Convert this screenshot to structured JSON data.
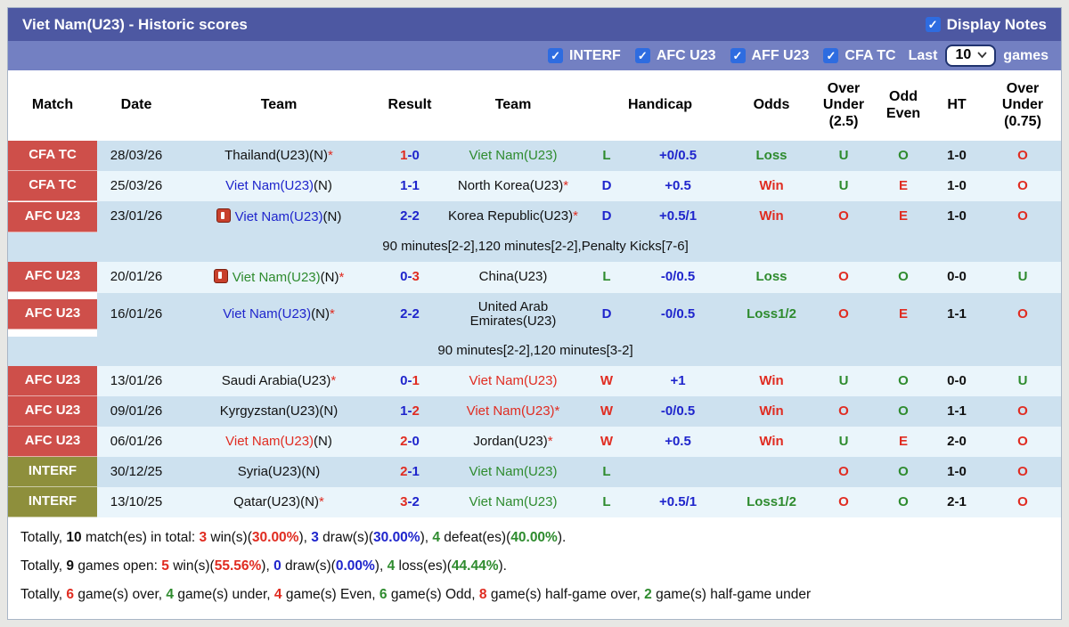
{
  "header": {
    "title": "Viet Nam(U23) - Historic scores",
    "display_notes_label": "Display Notes",
    "display_notes_checked": true
  },
  "filters": {
    "checkboxes": [
      {
        "label": "INTERF",
        "checked": true
      },
      {
        "label": "AFC U23",
        "checked": true
      },
      {
        "label": "AFF U23",
        "checked": true
      },
      {
        "label": "CFA TC",
        "checked": true
      }
    ],
    "last_label": "Last",
    "select_value": "10",
    "games_label": "games"
  },
  "colors": {
    "header_dark": "#4d58a2",
    "header_light": "#7380c2",
    "checkbox_blue": "#2e6ce0",
    "label_red": "#ce4f4a",
    "label_olive": "#8e8f3c",
    "stripe_dark": "#cde1ef",
    "stripe_light": "#eaf5fb",
    "win_red": "#e02c21",
    "draw_blue": "#1f25cc",
    "loss_green": "#2e8b2e"
  },
  "table": {
    "headers": {
      "match": "Match",
      "date": "Date",
      "team_home": "Team",
      "result": "Result",
      "team_away": "Team",
      "handicap": "Handicap",
      "odds": "Odds",
      "over_under_25": "Over\nUnder\n(2.5)",
      "odd_even": "Odd\nEven",
      "ht": "HT",
      "over_under_075": "Over\nUnder\n(0.75)"
    },
    "rows": [
      {
        "type": "match",
        "shade": "a",
        "league": "CFA TC",
        "league_color": "red",
        "date": "28/03/26",
        "home_icon": false,
        "away_icon": false,
        "home": [
          [
            "Thailand(U23)(N)",
            "k"
          ],
          [
            "*",
            "r"
          ]
        ],
        "result": [
          [
            "1",
            "r"
          ],
          [
            "-0",
            "bl"
          ]
        ],
        "away": [
          [
            "Viet Nam(U23)",
            "g"
          ]
        ],
        "wdl": [
          "L",
          "g"
        ],
        "handicap": [
          "+0/0.5",
          "bl"
        ],
        "odds": [
          "Loss",
          "g"
        ],
        "ou25": [
          "U",
          "g"
        ],
        "odd_even": [
          "O",
          "g"
        ],
        "ht": "1-0",
        "ou075": [
          "O",
          "r"
        ]
      },
      {
        "type": "match",
        "shade": "b",
        "league": "CFA TC",
        "league_color": "red",
        "date": "25/03/26",
        "home_icon": false,
        "away_icon": false,
        "home": [
          [
            "Viet Nam(U23)",
            "bl"
          ],
          [
            "(N)",
            "k"
          ]
        ],
        "result": [
          [
            "1-1",
            "bl"
          ]
        ],
        "away": [
          [
            "North Korea(U23)",
            "k"
          ],
          [
            "*",
            "r"
          ]
        ],
        "wdl": [
          "D",
          "bl"
        ],
        "handicap": [
          "+0.5",
          "bl"
        ],
        "odds": [
          "Win",
          "r"
        ],
        "ou25": [
          "U",
          "g"
        ],
        "odd_even": [
          "E",
          "r"
        ],
        "ht": "1-0",
        "ou075": [
          "O",
          "r"
        ]
      },
      {
        "type": "match",
        "shade": "a",
        "league": "AFC U23",
        "league_color": "red",
        "date": "23/01/26",
        "home_icon": true,
        "away_icon": false,
        "home": [
          [
            "Viet Nam(U23)",
            "bl"
          ],
          [
            "(N)",
            "k"
          ]
        ],
        "result": [
          [
            "2-2",
            "bl"
          ]
        ],
        "away": [
          [
            "Korea Republic(U23)",
            "k"
          ],
          [
            "*",
            "r"
          ]
        ],
        "wdl": [
          "D",
          "bl"
        ],
        "handicap": [
          "+0.5/1",
          "bl"
        ],
        "odds": [
          "Win",
          "r"
        ],
        "ou25": [
          "O",
          "r"
        ],
        "odd_even": [
          "E",
          "r"
        ],
        "ht": "1-0",
        "ou075": [
          "O",
          "r"
        ]
      },
      {
        "type": "note",
        "shade": "a",
        "text": "90 minutes[2-2],120 minutes[2-2],Penalty Kicks[7-6]"
      },
      {
        "type": "match",
        "shade": "b",
        "league": "AFC U23",
        "league_color": "red",
        "date": "20/01/26",
        "home_icon": true,
        "away_icon": false,
        "home": [
          [
            "Viet Nam(U23)",
            "g"
          ],
          [
            "(N)",
            "k"
          ],
          [
            "*",
            "r"
          ]
        ],
        "result": [
          [
            "0-",
            "bl"
          ],
          [
            "3",
            "r"
          ]
        ],
        "away": [
          [
            "China(U23)",
            "k"
          ]
        ],
        "wdl": [
          "L",
          "g"
        ],
        "handicap": [
          "-0/0.5",
          "bl"
        ],
        "odds": [
          "Loss",
          "g"
        ],
        "ou25": [
          "O",
          "r"
        ],
        "odd_even": [
          "O",
          "g"
        ],
        "ht": "0-0",
        "ou075": [
          "U",
          "g"
        ]
      },
      {
        "type": "match",
        "shade": "a",
        "league": "AFC U23",
        "league_color": "red",
        "date": "16/01/26",
        "home_icon": false,
        "away_icon": false,
        "home": [
          [
            "Viet Nam(U23)",
            "bl"
          ],
          [
            "(N)",
            "k"
          ],
          [
            "*",
            "r"
          ]
        ],
        "result": [
          [
            "2-2",
            "bl"
          ]
        ],
        "away": [
          [
            "United Arab Emirates(U23)",
            "k"
          ]
        ],
        "wdl": [
          "D",
          "bl"
        ],
        "handicap": [
          "-0/0.5",
          "bl"
        ],
        "odds": [
          "Loss1/2",
          "g"
        ],
        "ou25": [
          "O",
          "r"
        ],
        "odd_even": [
          "E",
          "r"
        ],
        "ht": "1-1",
        "ou075": [
          "O",
          "r"
        ]
      },
      {
        "type": "note",
        "shade": "a",
        "text": "90 minutes[2-2],120 minutes[3-2]"
      },
      {
        "type": "match",
        "shade": "b",
        "league": "AFC U23",
        "league_color": "red",
        "date": "13/01/26",
        "home_icon": false,
        "away_icon": false,
        "home": [
          [
            "Saudi Arabia(U23)",
            "k"
          ],
          [
            "*",
            "r"
          ]
        ],
        "result": [
          [
            "0-",
            "bl"
          ],
          [
            "1",
            "r"
          ]
        ],
        "away": [
          [
            "Viet Nam(U23)",
            "r"
          ]
        ],
        "wdl": [
          "W",
          "r"
        ],
        "handicap": [
          "+1",
          "bl"
        ],
        "odds": [
          "Win",
          "r"
        ],
        "ou25": [
          "U",
          "g"
        ],
        "odd_even": [
          "O",
          "g"
        ],
        "ht": "0-0",
        "ou075": [
          "U",
          "g"
        ]
      },
      {
        "type": "match",
        "shade": "a",
        "league": "AFC U23",
        "league_color": "red",
        "date": "09/01/26",
        "home_icon": false,
        "away_icon": false,
        "home": [
          [
            "Kyrgyzstan(U23)(N)",
            "k"
          ]
        ],
        "result": [
          [
            "1-",
            "bl"
          ],
          [
            "2",
            "r"
          ]
        ],
        "away": [
          [
            "Viet Nam(U23)",
            "r"
          ],
          [
            "*",
            "r"
          ]
        ],
        "wdl": [
          "W",
          "r"
        ],
        "handicap": [
          "-0/0.5",
          "bl"
        ],
        "odds": [
          "Win",
          "r"
        ],
        "ou25": [
          "O",
          "r"
        ],
        "odd_even": [
          "O",
          "g"
        ],
        "ht": "1-1",
        "ou075": [
          "O",
          "r"
        ]
      },
      {
        "type": "match",
        "shade": "b",
        "league": "AFC U23",
        "league_color": "red",
        "date": "06/01/26",
        "home_icon": false,
        "away_icon": false,
        "home": [
          [
            "Viet Nam(U23)",
            "r"
          ],
          [
            "(N)",
            "k"
          ]
        ],
        "result": [
          [
            "2",
            "r"
          ],
          [
            "-0",
            "bl"
          ]
        ],
        "away": [
          [
            "Jordan(U23)",
            "k"
          ],
          [
            "*",
            "r"
          ]
        ],
        "wdl": [
          "W",
          "r"
        ],
        "handicap": [
          "+0.5",
          "bl"
        ],
        "odds": [
          "Win",
          "r"
        ],
        "ou25": [
          "U",
          "g"
        ],
        "odd_even": [
          "E",
          "r"
        ],
        "ht": "2-0",
        "ou075": [
          "O",
          "r"
        ]
      },
      {
        "type": "match",
        "shade": "a",
        "league": "INTERF",
        "league_color": "olive",
        "date": "30/12/25",
        "home_icon": false,
        "away_icon": false,
        "home": [
          [
            "Syria(U23)(N)",
            "k"
          ]
        ],
        "result": [
          [
            "2",
            "r"
          ],
          [
            "-1",
            "bl"
          ]
        ],
        "away": [
          [
            "Viet Nam(U23)",
            "g"
          ]
        ],
        "wdl": [
          "L",
          "g"
        ],
        "handicap": [
          "",
          ""
        ],
        "odds": [
          "",
          ""
        ],
        "ou25": [
          "O",
          "r"
        ],
        "odd_even": [
          "O",
          "g"
        ],
        "ht": "1-0",
        "ou075": [
          "O",
          "r"
        ]
      },
      {
        "type": "match",
        "shade": "b",
        "league": "INTERF",
        "league_color": "olive",
        "date": "13/10/25",
        "home_icon": false,
        "away_icon": false,
        "home": [
          [
            "Qatar(U23)(N)",
            "k"
          ],
          [
            "*",
            "r"
          ]
        ],
        "result": [
          [
            "3",
            "r"
          ],
          [
            "-2",
            "bl"
          ]
        ],
        "away": [
          [
            "Viet Nam(U23)",
            "g"
          ]
        ],
        "wdl": [
          "L",
          "g"
        ],
        "handicap": [
          "+0.5/1",
          "bl"
        ],
        "odds": [
          "Loss1/2",
          "g"
        ],
        "ou25": [
          "O",
          "r"
        ],
        "odd_even": [
          "O",
          "g"
        ],
        "ht": "2-1",
        "ou075": [
          "O",
          "r"
        ]
      }
    ]
  },
  "summary_lines": [
    [
      [
        "Totally, ",
        "k"
      ],
      [
        "10",
        "k",
        "b"
      ],
      [
        " match(es) in total: ",
        "k"
      ],
      [
        "3",
        "r",
        "b"
      ],
      [
        " win(s)(",
        "k"
      ],
      [
        "30.00%",
        "r",
        "b"
      ],
      [
        "), ",
        "k"
      ],
      [
        "3",
        "bl",
        "b"
      ],
      [
        " draw(s)(",
        "k"
      ],
      [
        "30.00%",
        "bl",
        "b"
      ],
      [
        "), ",
        "k"
      ],
      [
        "4",
        "g",
        "b"
      ],
      [
        " defeat(es)(",
        "k"
      ],
      [
        "40.00%",
        "g",
        "b"
      ],
      [
        ").",
        "k"
      ]
    ],
    [
      [
        "Totally, ",
        "k"
      ],
      [
        "9",
        "k",
        "b"
      ],
      [
        " games open: ",
        "k"
      ],
      [
        "5",
        "r",
        "b"
      ],
      [
        " win(s)(",
        "k"
      ],
      [
        "55.56%",
        "r",
        "b"
      ],
      [
        "), ",
        "k"
      ],
      [
        "0",
        "bl",
        "b"
      ],
      [
        " draw(s)(",
        "k"
      ],
      [
        "0.00%",
        "bl",
        "b"
      ],
      [
        "), ",
        "k"
      ],
      [
        "4",
        "g",
        "b"
      ],
      [
        " loss(es)(",
        "k"
      ],
      [
        "44.44%",
        "g",
        "b"
      ],
      [
        ").",
        "k"
      ]
    ],
    [
      [
        "Totally, ",
        "k"
      ],
      [
        "6",
        "r",
        "b"
      ],
      [
        " game(s) over, ",
        "k"
      ],
      [
        "4",
        "g",
        "b"
      ],
      [
        " game(s) under, ",
        "k"
      ],
      [
        "4",
        "r",
        "b"
      ],
      [
        " game(s) Even, ",
        "k"
      ],
      [
        "6",
        "g",
        "b"
      ],
      [
        " game(s) Odd, ",
        "k"
      ],
      [
        "8",
        "r",
        "b"
      ],
      [
        " game(s) half-game over, ",
        "k"
      ],
      [
        "2",
        "g",
        "b"
      ],
      [
        " game(s) half-game under",
        "k"
      ]
    ]
  ]
}
